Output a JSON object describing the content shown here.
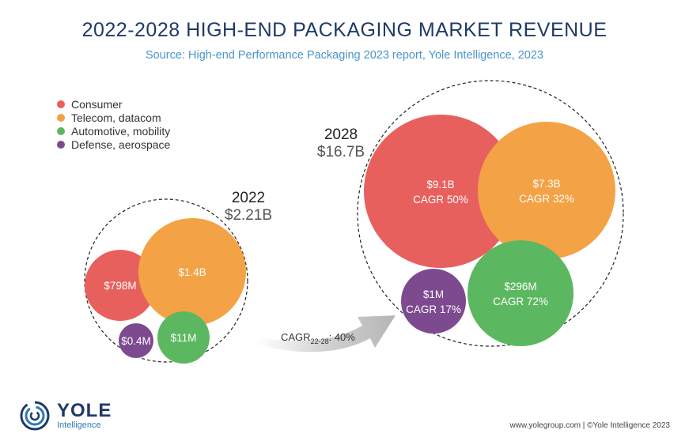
{
  "header": {
    "title": "2022-2028 HIGH-END PACKAGING MARKET REVENUE",
    "subtitle": "Source: High-end Performance Packaging 2023 report, Yole Intelligence, 2023"
  },
  "legend": [
    {
      "label": "Consumer",
      "color": "#e8605e"
    },
    {
      "label": "Telecom, datacom",
      "color": "#f3a245"
    },
    {
      "label": "Automotive, mobility",
      "color": "#5cb860"
    },
    {
      "label": "Defense, aerospace",
      "color": "#7d4a8f"
    }
  ],
  "chart_data": {
    "type": "bubble",
    "title": "2022-2028 HIGH-END PACKAGING MARKET REVENUE",
    "groups": [
      {
        "year": "2022",
        "total": "$2.21B",
        "segments": [
          {
            "segment": "Consumer",
            "label": "$798M",
            "value_musd": 798,
            "color": "#e8605e"
          },
          {
            "segment": "Telecom, datacom",
            "label": "$1.4B",
            "value_musd": 1400,
            "color": "#f3a245"
          },
          {
            "segment": "Defense, aerospace",
            "label": "$0.4M",
            "value_musd": 0.4,
            "color": "#7d4a8f"
          },
          {
            "segment": "Automotive, mobility",
            "label": "$11M",
            "value_musd": 11,
            "color": "#5cb860"
          }
        ]
      },
      {
        "year": "2028",
        "total": "$16.7B",
        "segments": [
          {
            "segment": "Consumer",
            "label": "$9.1B",
            "cagr": "CAGR 50%",
            "value_musd": 9100,
            "color": "#e8605e"
          },
          {
            "segment": "Telecom, datacom",
            "label": "$7.3B",
            "cagr": "CAGR 32%",
            "value_musd": 7300,
            "color": "#f3a245"
          },
          {
            "segment": "Defense, aerospace",
            "label": "$1M",
            "cagr": "CAGR 17%",
            "value_musd": 1,
            "color": "#7d4a8f"
          },
          {
            "segment": "Automotive, mobility",
            "label": "$296M",
            "cagr": "CAGR 72%",
            "value_musd": 296,
            "color": "#5cb860"
          }
        ]
      }
    ],
    "arrow": {
      "prefix": "CAGR",
      "subscript": "22-28",
      "suffix": ": 40%"
    }
  },
  "brand": {
    "name": "YOLE",
    "sub": "Intelligence"
  },
  "footer": {
    "text": "www.yolegroup.com | ©Yole Intelligence 2023"
  }
}
